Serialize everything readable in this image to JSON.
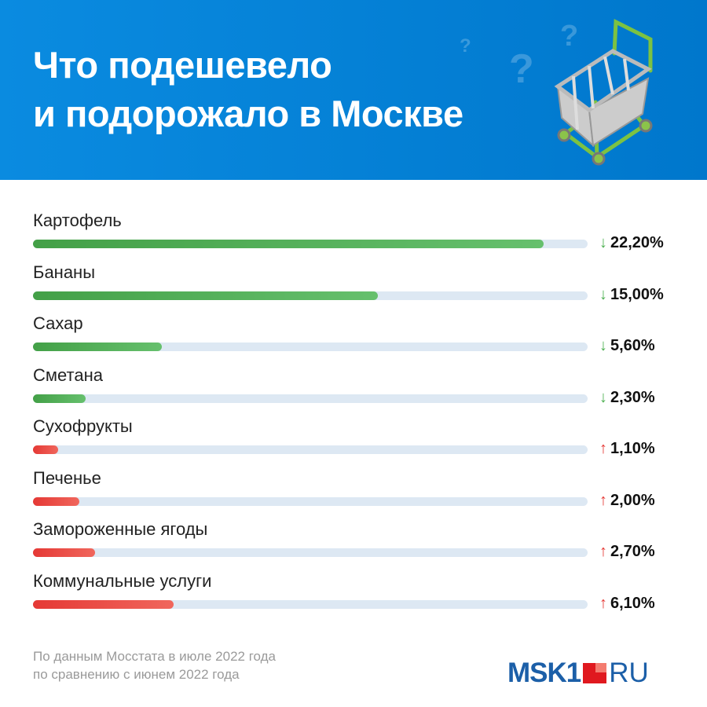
{
  "header": {
    "title_line1": "Что подешевело",
    "title_line2": "и подорожало в Москве"
  },
  "chart_data": {
    "type": "bar",
    "orientation": "horizontal",
    "title": "Что подешевело и подорожало в Москве",
    "categories": [
      "Картофель",
      "Бананы",
      "Сахар",
      "Сметана",
      "Сухофрукты",
      "Печенье",
      "Замороженные ягоды",
      "Коммунальные услуги"
    ],
    "values": [
      -22.2,
      -15.0,
      -5.6,
      -2.3,
      1.1,
      2.0,
      2.7,
      6.1
    ],
    "value_labels": [
      "22,20%",
      "15,00%",
      "5,60%",
      "2,30%",
      "1,10%",
      "2,00%",
      "2,70%",
      "6,10%"
    ],
    "directions": [
      "down",
      "down",
      "down",
      "down",
      "up",
      "up",
      "up",
      "up"
    ],
    "xlim": [
      0,
      24.1
    ],
    "colors": {
      "down": "#4caf50",
      "up": "#e53935",
      "track": "#dde8f3"
    }
  },
  "footer": {
    "source_line1": "По данным Мосстата в июле 2022 года",
    "source_line2": "по сравнению с июнем 2022 года",
    "logo_text": "MSK1",
    "logo_suffix": "RU"
  }
}
